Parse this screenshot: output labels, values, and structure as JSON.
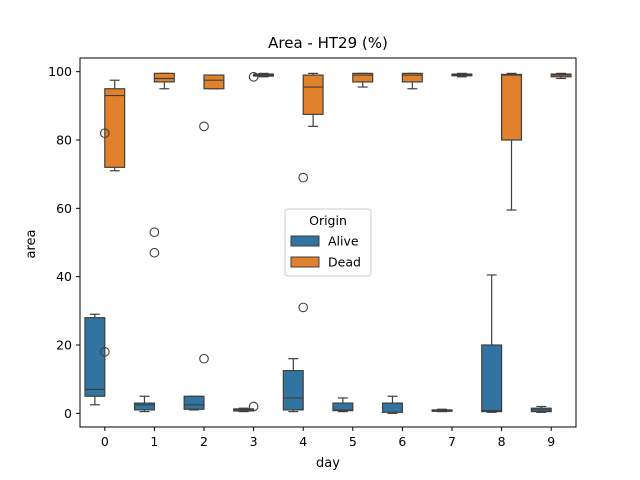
{
  "chart_data": {
    "type": "box",
    "title": "Area - HT29 (%)",
    "xlabel": "day",
    "ylabel": "area",
    "ylim": [
      -4,
      104
    ],
    "yticks": [
      0,
      20,
      40,
      60,
      80,
      100
    ],
    "categories": [
      "0",
      "1",
      "2",
      "3",
      "4",
      "5",
      "6",
      "7",
      "8",
      "9"
    ],
    "legend": {
      "title": "Origin",
      "placement": "center"
    },
    "series": [
      {
        "name": "Alive",
        "color": "#3274a1",
        "boxes": [
          {
            "whisker_low": 2.5,
            "q1": 5,
            "median": 7,
            "q3": 28,
            "whisker_high": 29,
            "outliers": [
              18
            ]
          },
          {
            "whisker_low": 0.5,
            "q1": 1,
            "median": 2.5,
            "q3": 3,
            "whisker_high": 5,
            "outliers": [
              53,
              47
            ]
          },
          {
            "whisker_low": 1,
            "q1": 1.2,
            "median": 2.5,
            "q3": 5,
            "whisker_high": 5,
            "outliers": [
              16
            ]
          },
          {
            "whisker_low": 0.5,
            "q1": 0.7,
            "median": 1,
            "q3": 1.3,
            "whisker_high": 1.5,
            "outliers": [
              2
            ]
          },
          {
            "whisker_low": 0.5,
            "q1": 1,
            "median": 4.5,
            "q3": 12.5,
            "whisker_high": 16,
            "outliers": [
              31
            ]
          },
          {
            "whisker_low": 0.5,
            "q1": 0.8,
            "median": 1,
            "q3": 3,
            "whisker_high": 4.5,
            "outliers": []
          },
          {
            "whisker_low": 0,
            "q1": 0.3,
            "median": 3,
            "q3": 3,
            "whisker_high": 5,
            "outliers": []
          },
          {
            "whisker_low": 0.5,
            "q1": 0.6,
            "median": 0.8,
            "q3": 1,
            "whisker_high": 1.2,
            "outliers": []
          },
          {
            "whisker_low": 0.3,
            "q1": 0.5,
            "median": 0.8,
            "q3": 20,
            "whisker_high": 40.5,
            "outliers": []
          },
          {
            "whisker_low": 0.3,
            "q1": 0.5,
            "median": 1,
            "q3": 1.5,
            "whisker_high": 2,
            "outliers": []
          }
        ]
      },
      {
        "name": "Dead",
        "color": "#e1812c",
        "boxes": [
          {
            "whisker_low": 71,
            "q1": 72,
            "median": 93,
            "q3": 95,
            "whisker_high": 97.5,
            "outliers": [
              82
            ]
          },
          {
            "whisker_low": 95,
            "q1": 97,
            "median": 98,
            "q3": 99.5,
            "whisker_high": 99.5,
            "outliers": []
          },
          {
            "whisker_low": 95,
            "q1": 95,
            "median": 97.5,
            "q3": 99,
            "whisker_high": 99,
            "outliers": [
              84
            ]
          },
          {
            "whisker_low": 98.5,
            "q1": 98.7,
            "median": 99,
            "q3": 99.3,
            "whisker_high": 99.5,
            "outliers": [
              98.5
            ]
          },
          {
            "whisker_low": 84,
            "q1": 87.5,
            "median": 95.5,
            "q3": 99,
            "whisker_high": 99.5,
            "outliers": [
              69
            ]
          },
          {
            "whisker_low": 95.5,
            "q1": 97,
            "median": 99,
            "q3": 99.5,
            "whisker_high": 99.5,
            "outliers": []
          },
          {
            "whisker_low": 95,
            "q1": 97,
            "median": 99,
            "q3": 99.5,
            "whisker_high": 99.5,
            "outliers": []
          },
          {
            "whisker_low": 98.5,
            "q1": 98.8,
            "median": 99,
            "q3": 99.3,
            "whisker_high": 99.5,
            "outliers": []
          },
          {
            "whisker_low": 59.5,
            "q1": 80,
            "median": 99,
            "q3": 99.2,
            "whisker_high": 99.5,
            "outliers": []
          },
          {
            "whisker_low": 98,
            "q1": 98.5,
            "median": 99,
            "q3": 99.3,
            "whisker_high": 99.5,
            "outliers": []
          }
        ]
      }
    ]
  }
}
